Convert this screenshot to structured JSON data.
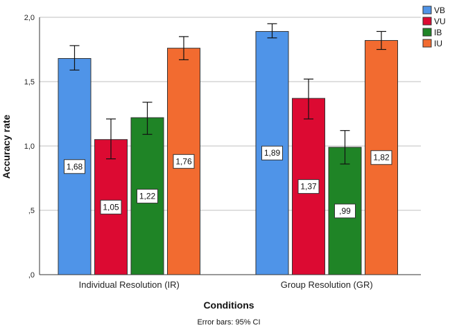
{
  "chart_data": {
    "type": "bar",
    "title": "",
    "xlabel": "Conditions",
    "ylabel": "Accuracy rate",
    "note": "Error bars: 95% CI",
    "ylim": [
      0,
      2.0
    ],
    "yticks": [
      {
        "value": 0,
        "label": ",0"
      },
      {
        "value": 0.5,
        "label": ",5"
      },
      {
        "value": 1.0,
        "label": "1,0"
      },
      {
        "value": 1.5,
        "label": "1,5"
      },
      {
        "value": 2.0,
        "label": "2,0"
      }
    ],
    "grid": true,
    "legend_position": "top-right",
    "categories": [
      "Individual Resolution (IR)",
      "Group Resolution (GR)"
    ],
    "series": [
      {
        "name": "VB",
        "color": "#4f94e8",
        "values": [
          1.68,
          1.89
        ],
        "labels": [
          "1,68",
          "1,89"
        ],
        "ci_low": [
          1.59,
          1.84
        ],
        "ci_high": [
          1.78,
          1.95
        ]
      },
      {
        "name": "VU",
        "color": "#dc0a32",
        "values": [
          1.05,
          1.37
        ],
        "labels": [
          "1,05",
          "1,37"
        ],
        "ci_low": [
          0.9,
          1.21
        ],
        "ci_high": [
          1.21,
          1.52
        ]
      },
      {
        "name": "IB",
        "color": "#1f8426",
        "values": [
          1.22,
          0.99
        ],
        "labels": [
          "1,22",
          ",99"
        ],
        "ci_low": [
          1.09,
          0.86
        ],
        "ci_high": [
          1.34,
          1.12
        ]
      },
      {
        "name": "IU",
        "color": "#f26b30",
        "values": [
          1.76,
          1.82
        ],
        "labels": [
          "1,76",
          "1,82"
        ],
        "ci_low": [
          1.67,
          1.75
        ],
        "ci_high": [
          1.85,
          1.89
        ]
      }
    ]
  }
}
